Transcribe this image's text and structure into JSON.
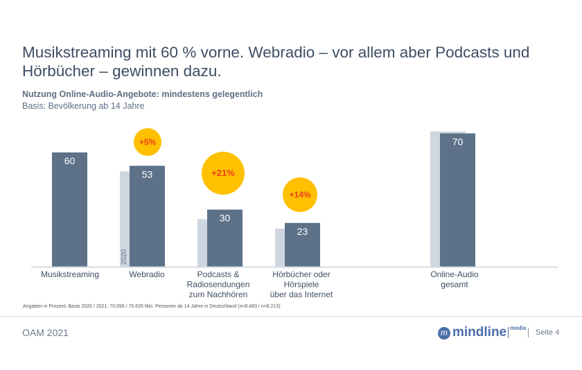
{
  "title": "Musikstreaming mit 60 % vorne. Webradio – vor allem aber Podcasts und Hörbücher – gewinnen dazu.",
  "subtitle": "Nutzung Online-Audio-Angebote: mindestens gelegentlich",
  "basis": "Basis: Bevölkerung ab 14 Jahre",
  "footnote": "Angaben in Prozent; Basis 2020 / 2021: 70,596 / 70.635 Mio. Personen ab 14 Jahre in Deutschland (n=8.483 / n=8.213)",
  "footer": {
    "left": "OAM 2021",
    "logo_text": "mindline",
    "logo_sub": "media",
    "page": "Seite 4"
  },
  "chart_data": {
    "type": "bar",
    "title": "Nutzung Online-Audio-Angebote: mindestens gelegentlich",
    "categories": [
      [
        "Musikstreaming"
      ],
      [
        "Webradio"
      ],
      [
        "Podcasts &",
        "Radiosendungen",
        "zum Nachhören"
      ],
      [
        "Hörbücher oder",
        "Hörspiele",
        "über das Internet"
      ],
      [
        "Online-Audio",
        "gesamt"
      ]
    ],
    "series": [
      {
        "name": "2020",
        "values": [
          null,
          50,
          25,
          20,
          71
        ],
        "color": "#CED6DF"
      },
      {
        "values": [
          60,
          53,
          30,
          23,
          70
        ],
        "color": "#5D7189"
      }
    ],
    "growth_labels": [
      "",
      "+5%",
      "+21%",
      "+14%",
      ""
    ],
    "growth_color": "#FFC000",
    "growth_text_color": "#E8401C",
    "ylim": [
      0,
      75
    ],
    "grid": false
  }
}
